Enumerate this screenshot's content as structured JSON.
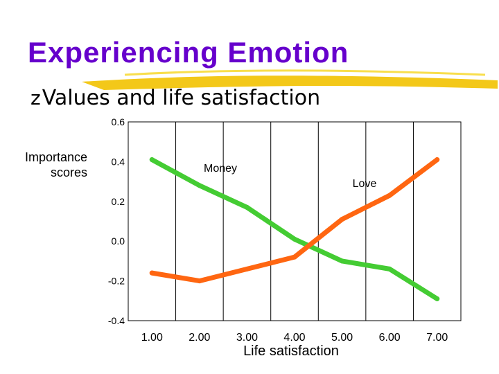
{
  "slide": {
    "title": "Experiencing Emotion",
    "bullet_glyph": "z",
    "bullet_text": "Values and life satisfaction",
    "title_color": "#6600cc",
    "underline_color": "#f2c200"
  },
  "chart_data": {
    "type": "line",
    "title": "",
    "xlabel": "Life satisfaction",
    "ylabel": "Importance scores",
    "x": [
      1,
      2,
      3,
      4,
      5,
      6,
      7
    ],
    "x_tick_labels": [
      "1.00",
      "2.00",
      "3.00",
      "4.00",
      "5.00",
      "6.00",
      "7.00"
    ],
    "y_tick_labels": [
      "0.6",
      "0.4",
      "0.2",
      "0.0",
      "-0.2",
      "-0.4"
    ],
    "y_ticks": [
      0.6,
      0.4,
      0.2,
      0.0,
      -0.2,
      -0.4
    ],
    "ylim": [
      -0.4,
      0.6
    ],
    "xlim": [
      0.5,
      7.5
    ],
    "grid": "vertical",
    "series": [
      {
        "name": "Money",
        "color": "#44cc33",
        "values": [
          0.41,
          0.28,
          0.17,
          0.01,
          -0.1,
          -0.14,
          -0.29
        ]
      },
      {
        "name": "Love",
        "color": "#ff6611",
        "values": [
          -0.16,
          -0.2,
          -0.14,
          -0.08,
          0.11,
          0.23,
          0.41
        ]
      }
    ]
  }
}
